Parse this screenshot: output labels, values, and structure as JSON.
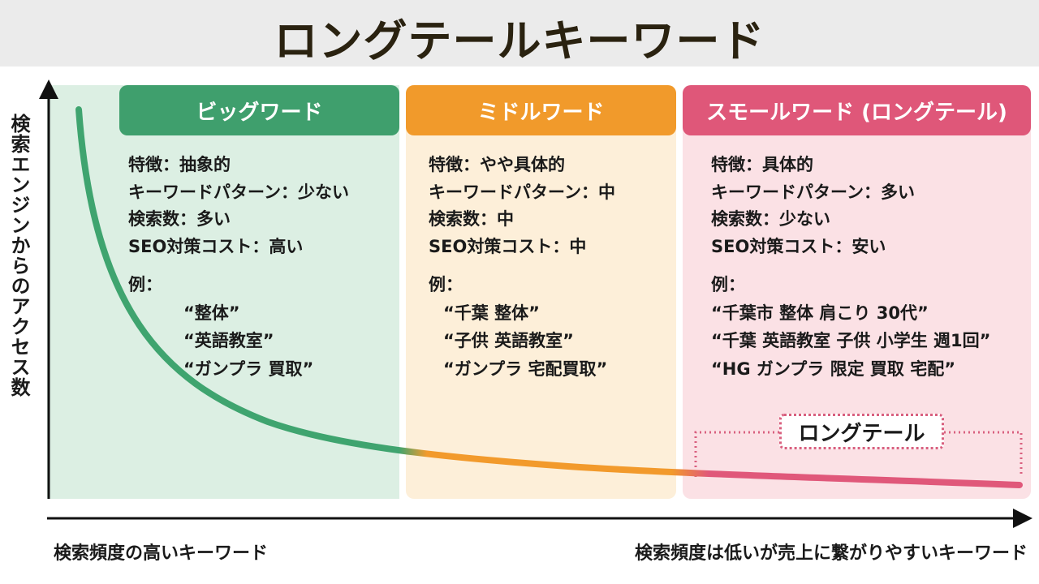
{
  "title": "ロングテールキーワード",
  "y_axis_label": "検索エンジンからのアクセス数",
  "x_axis_left_label": "検索頻度の高いキーワード",
  "x_axis_right_label": "検索頻度は低いが売上に繋がりやすいキーワード",
  "longtail_label": "ロングテール",
  "colors": {
    "big": "#3f9f6d",
    "middle": "#f19a2b",
    "small": "#df5779"
  },
  "panels": [
    {
      "header": "ビッグワード",
      "lines": [
        "特徴：抽象的",
        "キーワードパターン：少ない",
        "検索数：多い",
        "SEO対策コスト：高い"
      ],
      "example_label": "例：",
      "examples": [
        "“整体”",
        "“英語教室”",
        "“ガンプラ 買取”"
      ]
    },
    {
      "header": "ミドルワード",
      "lines": [
        "特徴：やや具体的",
        "キーワードパターン：中",
        "検索数：中",
        "SEO対策コスト：中"
      ],
      "example_label": "例：",
      "examples": [
        "“千葉 整体”",
        "“子供 英語教室”",
        "“ガンプラ 宅配買取”"
      ]
    },
    {
      "header": "スモールワード (ロングテール)",
      "lines": [
        "特徴：具体的",
        "キーワードパターン：多い",
        "検索数：少ない",
        "SEO対策コスト：安い"
      ],
      "example_label": "例：",
      "examples": [
        "“千葉市 整体 肩こり 30代”",
        "“千葉 英語教室 子供 小学生 週1回”",
        "“HG ガンプラ 限定 買取 宅配”"
      ]
    }
  ]
}
